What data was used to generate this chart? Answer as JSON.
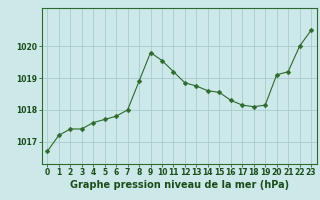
{
  "x": [
    0,
    1,
    2,
    3,
    4,
    5,
    6,
    7,
    8,
    9,
    10,
    11,
    12,
    13,
    14,
    15,
    16,
    17,
    18,
    19,
    20,
    21,
    22,
    23
  ],
  "y": [
    1016.7,
    1017.2,
    1017.4,
    1017.4,
    1017.6,
    1017.7,
    1017.8,
    1018.0,
    1018.9,
    1019.8,
    1019.55,
    1019.2,
    1018.85,
    1018.75,
    1018.6,
    1018.55,
    1018.3,
    1018.15,
    1018.1,
    1018.15,
    1019.1,
    1019.2,
    1020.0,
    1020.5
  ],
  "line_color": "#2d6a2d",
  "marker": "D",
  "marker_size": 2.5,
  "bg_color": "#cce8e8",
  "grid_color": "#aacccc",
  "ylabel_ticks": [
    1017,
    1018,
    1019,
    1020
  ],
  "xlabel_label": "Graphe pression niveau de la mer (hPa)",
  "ylim": [
    1016.3,
    1021.2
  ],
  "xlim": [
    -0.5,
    23.5
  ],
  "tick_fontsize": 5.5,
  "label_fontsize": 7.0,
  "line_color_dark": "#1a4d1a"
}
